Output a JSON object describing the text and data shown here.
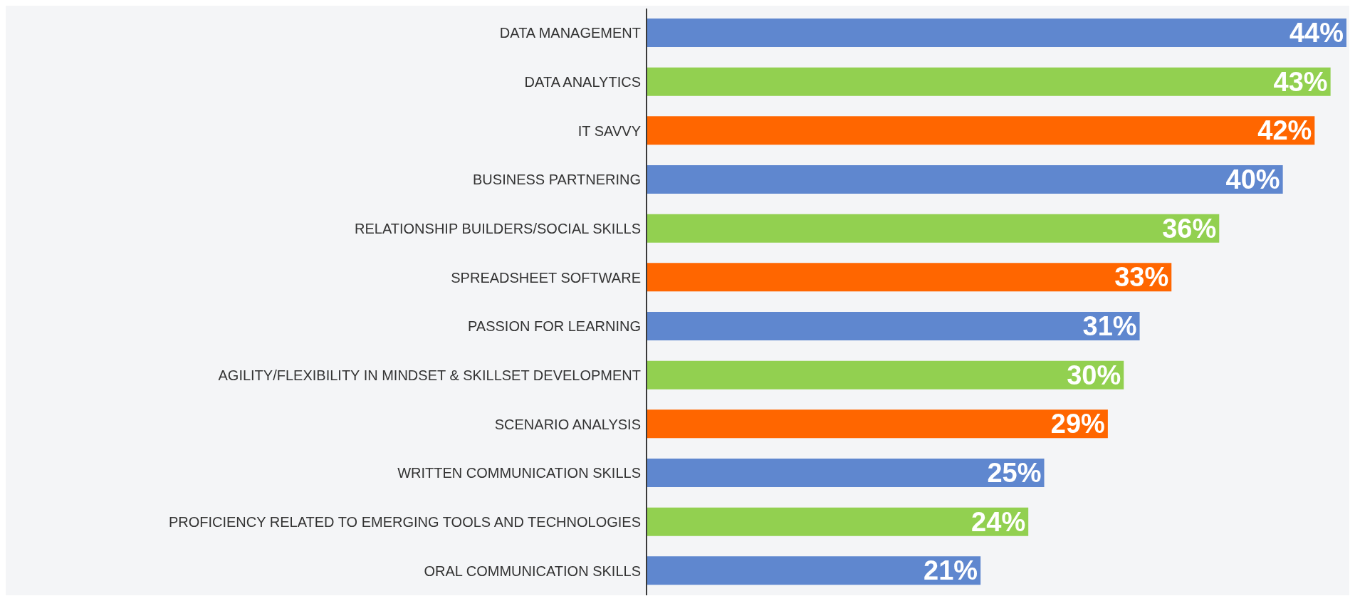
{
  "chart_data": {
    "type": "bar",
    "orientation": "horizontal",
    "categories": [
      "DATA MANAGEMENT",
      "DATA ANALYTICS",
      "IT SAVVY",
      "BUSINESS PARTNERING",
      "RELATIONSHIP BUILDERS/SOCIAL SKILLS",
      "SPREADSHEET SOFTWARE",
      "PASSION FOR LEARNING",
      "AGILITY/FLEXIBILITY IN MINDSET & SKILLSET DEVELOPMENT",
      "SCENARIO ANALYSIS",
      "WRITTEN COMMUNICATION SKILLS",
      "PROFICIENCY RELATED TO EMERGING TOOLS AND TECHNOLOGIES",
      "ORAL COMMUNICATION SKILLS"
    ],
    "values": [
      44,
      43,
      42,
      40,
      36,
      33,
      31,
      30,
      29,
      25,
      24,
      21
    ],
    "colors": [
      "#5f87cf",
      "#92d050",
      "#ff6600",
      "#5f87cf",
      "#92d050",
      "#ff6600",
      "#5f87cf",
      "#92d050",
      "#ff6600",
      "#5f87cf",
      "#92d050",
      "#5f87cf"
    ],
    "value_labels": [
      "44%",
      "43%",
      "42%",
      "40%",
      "36%",
      "33%",
      "31%",
      "30%",
      "29%",
      "25%",
      "24%",
      "21%"
    ],
    "grid": false,
    "legend": false
  }
}
